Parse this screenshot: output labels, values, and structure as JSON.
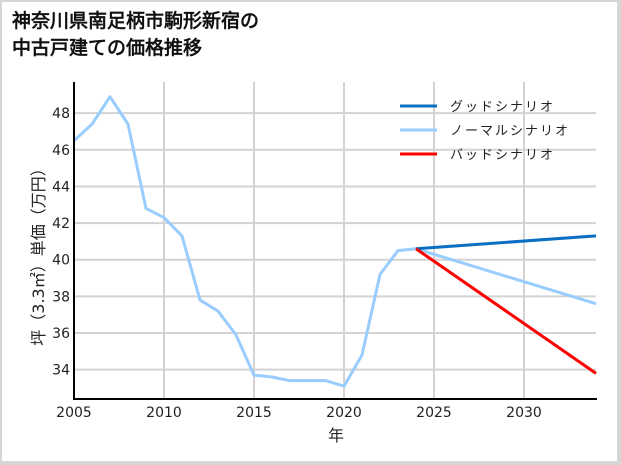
{
  "chart_data": {
    "type": "line",
    "title": "神奈川県南足柄市駒形新宿の\n中古戸建ての価格推移",
    "xlabel": "年",
    "ylabel": "坪（3.3㎡）単価（万円）",
    "xlim": [
      2005,
      2034
    ],
    "ylim": [
      32.4,
      49.7
    ],
    "x_ticks": [
      2005,
      2010,
      2015,
      2020,
      2025,
      2030
    ],
    "y_ticks": [
      34,
      36,
      38,
      40,
      42,
      44,
      46,
      48
    ],
    "grid": true,
    "legend_position": "upper right",
    "series": [
      {
        "name": "グッドシナリオ",
        "color": "#0a6fc2",
        "x": [
          2024,
          2034
        ],
        "values": [
          40.6,
          41.3
        ]
      },
      {
        "name": "ノーマルシナリオ",
        "color": "#99ccff",
        "x": [
          2005,
          2006,
          2007,
          2008,
          2009,
          2010,
          2011,
          2012,
          2013,
          2014,
          2015,
          2016,
          2017,
          2018,
          2019,
          2020,
          2021,
          2022,
          2023,
          2024,
          2034
        ],
        "values": [
          46.5,
          47.4,
          48.9,
          47.4,
          42.8,
          42.3,
          41.3,
          37.8,
          37.2,
          35.9,
          33.7,
          33.6,
          33.4,
          33.4,
          33.4,
          33.1,
          34.8,
          39.2,
          40.5,
          40.6,
          37.6
        ]
      },
      {
        "name": "バッドシナリオ",
        "color": "#ff0000",
        "x": [
          2024,
          2034
        ],
        "values": [
          40.6,
          33.8
        ]
      }
    ]
  },
  "title": "神奈川県南足柄市駒形新宿の\n中古戸建ての価格推移",
  "axes": {
    "xlabel": "年",
    "ylabel": "坪（3.3㎡）単価（万円）",
    "x_tick_labels": [
      "2005",
      "2010",
      "2015",
      "2020",
      "2025",
      "2030"
    ],
    "y_tick_labels": [
      "34",
      "36",
      "38",
      "40",
      "42",
      "44",
      "46",
      "48"
    ]
  },
  "legend": {
    "items": [
      {
        "label": "グッドシナリオ",
        "color": "#0a6fc2"
      },
      {
        "label": "ノーマルシナリオ",
        "color": "#99ccff"
      },
      {
        "label": "バッドシナリオ",
        "color": "#ff0000"
      }
    ]
  }
}
